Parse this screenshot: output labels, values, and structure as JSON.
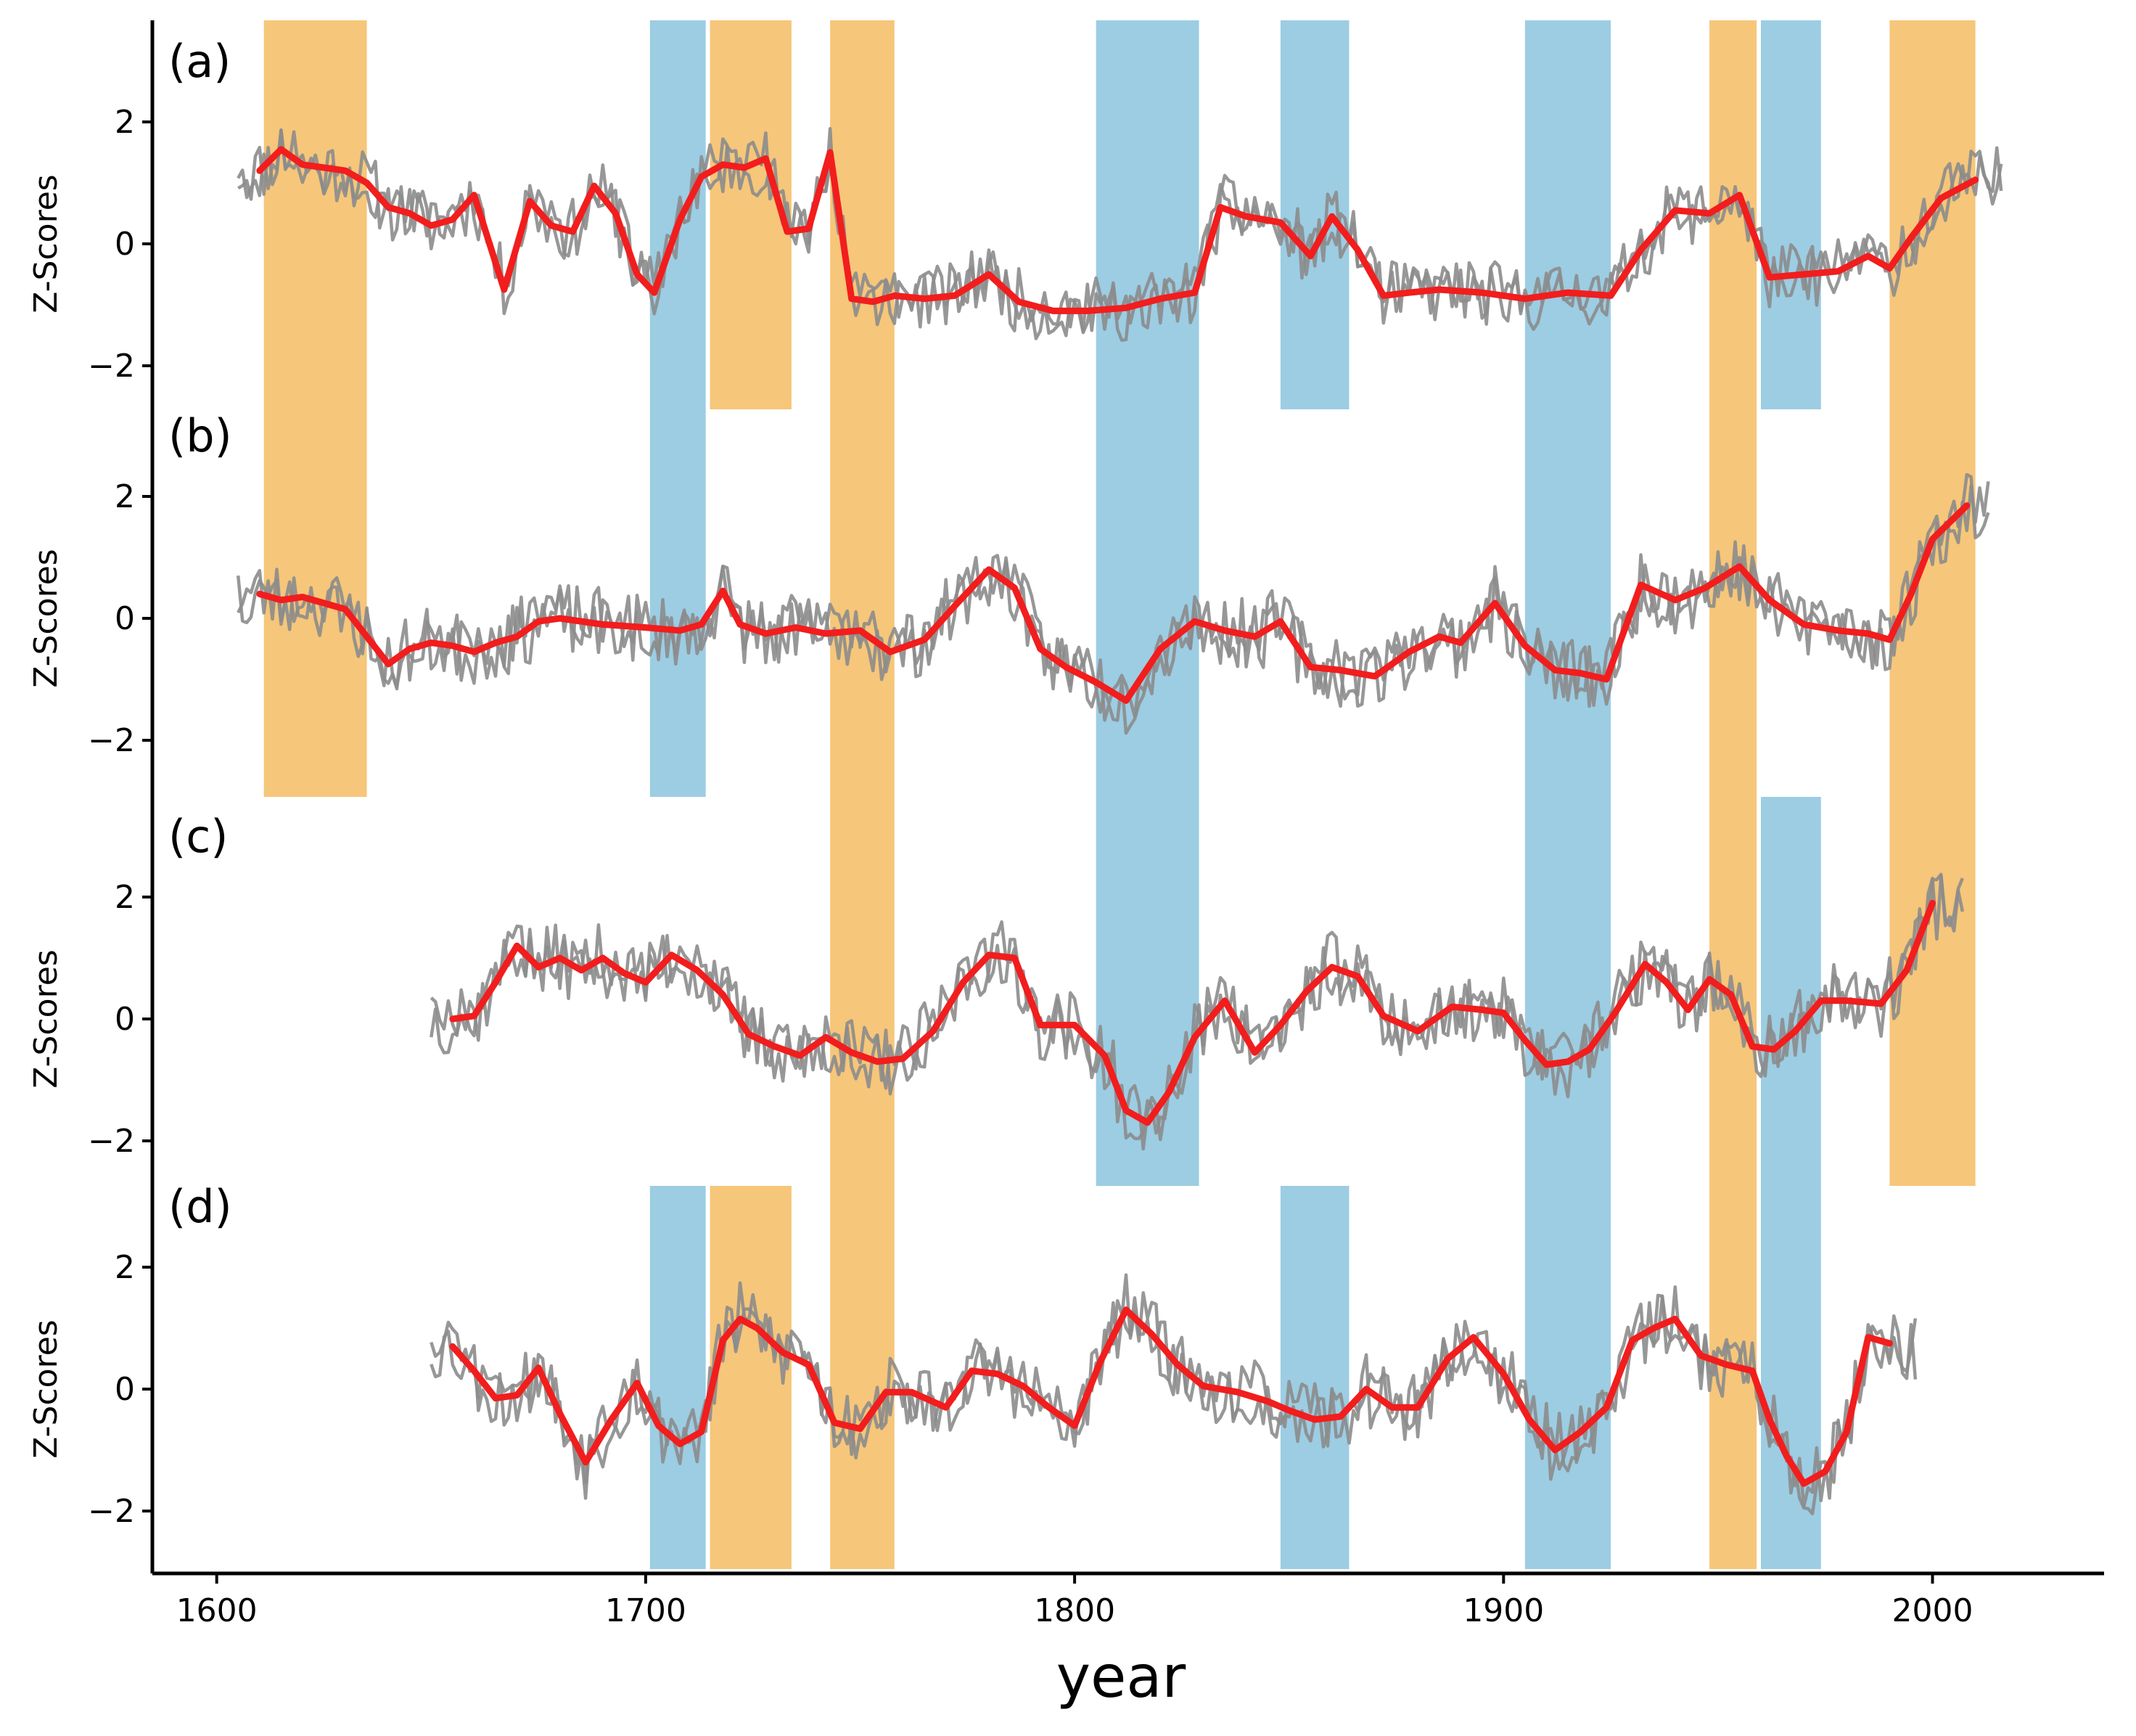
{
  "chart_data": {
    "type": "line",
    "title": "",
    "xlabel": "year",
    "ylabel": "Z-Scores",
    "xlim": [
      1585,
      2040
    ],
    "x_ticks": [
      1600,
      1700,
      1800,
      1900,
      2000
    ],
    "x_tick_labels": [
      "1600",
      "1700",
      "1800",
      "1900",
      "2000"
    ],
    "y_ticks": [
      2,
      0,
      -2
    ],
    "y_tick_labels": [
      "2",
      "0",
      "−2"
    ],
    "ylim_per_panel": [
      -2.6,
      3.4
    ],
    "colors": {
      "warm": "#f6c67a",
      "cool": "#9ccde3",
      "raw_series": "#8c8c8c",
      "smoothed_series": "#f21d1d",
      "axis": "#000000"
    },
    "highlight_bands": [
      {
        "type": "warm",
        "start": 1611,
        "end": 1635,
        "panels": [
          "a",
          "b"
        ]
      },
      {
        "type": "cool",
        "start": 1701,
        "end": 1714,
        "panels": [
          "a",
          "b"
        ]
      },
      {
        "type": "warm",
        "start": 1715,
        "end": 1734,
        "panels": [
          "a"
        ]
      },
      {
        "type": "warm",
        "start": 1743,
        "end": 1758,
        "panels": [
          "a",
          "b",
          "c"
        ]
      },
      {
        "type": "cool",
        "start": 1805,
        "end": 1829,
        "panels": [
          "a",
          "b",
          "c"
        ]
      },
      {
        "type": "cool",
        "start": 1848,
        "end": 1864,
        "panels": [
          "a"
        ]
      },
      {
        "type": "cool",
        "start": 1905,
        "end": 1925,
        "panels": [
          "a",
          "b",
          "c"
        ]
      },
      {
        "type": "warm",
        "start": 1948,
        "end": 1959,
        "panels": [
          "a",
          "b",
          "c"
        ]
      },
      {
        "type": "cool",
        "start": 1960,
        "end": 1974,
        "panels": [
          "a"
        ]
      },
      {
        "type": "warm",
        "start": 1990,
        "end": 2010,
        "panels": [
          "a",
          "b",
          "c"
        ]
      },
      {
        "type": "cool",
        "start": 1701,
        "end": 1714,
        "panels": [
          "d"
        ]
      },
      {
        "type": "warm",
        "start": 1715,
        "end": 1734,
        "panels": [
          "d"
        ]
      },
      {
        "type": "warm",
        "start": 1743,
        "end": 1758,
        "panels": [
          "d"
        ]
      },
      {
        "type": "cool",
        "start": 1848,
        "end": 1864,
        "panels": [
          "d"
        ]
      },
      {
        "type": "cool",
        "start": 1905,
        "end": 1925,
        "panels": [
          "d"
        ]
      },
      {
        "type": "warm",
        "start": 1948,
        "end": 1959,
        "panels": [
          "d"
        ]
      },
      {
        "type": "cool",
        "start": 1960,
        "end": 1974,
        "panels": [
          "c",
          "d"
        ]
      }
    ],
    "panels": [
      {
        "label": "(a)",
        "raw_range": [
          1605,
          2016
        ],
        "smoothed_range": [
          1610,
          2010
        ],
        "raw_noise": 0.55,
        "seed": 11,
        "smoothed": {
          "x": [
            1610,
            1615,
            1620,
            1625,
            1630,
            1635,
            1640,
            1645,
            1650,
            1655,
            1660,
            1667,
            1673,
            1678,
            1683,
            1688,
            1693,
            1698,
            1702,
            1708,
            1713,
            1718,
            1723,
            1728,
            1733,
            1738,
            1743,
            1748,
            1753,
            1758,
            1765,
            1772,
            1780,
            1787,
            1795,
            1803,
            1812,
            1820,
            1828,
            1834,
            1840,
            1848,
            1855,
            1860,
            1866,
            1872,
            1878,
            1885,
            1895,
            1905,
            1915,
            1925,
            1932,
            1940,
            1948,
            1955,
            1962,
            1970,
            1978,
            1985,
            1990,
            1995,
            2002,
            2010
          ],
          "y": [
            1.2,
            1.55,
            1.3,
            1.25,
            1.2,
            1.0,
            0.6,
            0.5,
            0.3,
            0.4,
            0.8,
            -0.75,
            0.7,
            0.3,
            0.2,
            0.95,
            0.5,
            -0.5,
            -0.8,
            0.4,
            1.1,
            1.3,
            1.25,
            1.4,
            0.2,
            0.25,
            1.5,
            -0.9,
            -0.95,
            -0.85,
            -0.9,
            -0.85,
            -0.5,
            -0.95,
            -1.1,
            -1.1,
            -1.05,
            -0.9,
            -0.8,
            0.6,
            0.45,
            0.35,
            -0.2,
            0.45,
            -0.1,
            -0.85,
            -0.8,
            -0.75,
            -0.8,
            -0.9,
            -0.8,
            -0.85,
            -0.1,
            0.55,
            0.5,
            0.8,
            -0.55,
            -0.5,
            -0.45,
            -0.2,
            -0.4,
            0.1,
            0.75,
            1.05
          ]
        }
      },
      {
        "label": "(b)",
        "raw_range": [
          1605,
          2013
        ],
        "smoothed_range": [
          1610,
          2008
        ],
        "raw_noise": 0.6,
        "seed": 23,
        "smoothed": {
          "x": [
            1610,
            1615,
            1620,
            1625,
            1630,
            1635,
            1640,
            1645,
            1650,
            1655,
            1660,
            1665,
            1670,
            1675,
            1680,
            1690,
            1700,
            1708,
            1713,
            1718,
            1722,
            1728,
            1735,
            1742,
            1750,
            1757,
            1765,
            1772,
            1780,
            1786,
            1792,
            1798,
            1805,
            1812,
            1820,
            1828,
            1835,
            1842,
            1848,
            1855,
            1862,
            1870,
            1878,
            1885,
            1890,
            1898,
            1905,
            1912,
            1918,
            1924,
            1932,
            1940,
            1947,
            1955,
            1962,
            1970,
            1978,
            1985,
            1990,
            1995,
            2000,
            2008
          ],
          "y": [
            0.4,
            0.3,
            0.35,
            0.25,
            0.15,
            -0.3,
            -0.75,
            -0.5,
            -0.4,
            -0.45,
            -0.55,
            -0.4,
            -0.3,
            -0.05,
            0.0,
            -0.1,
            -0.15,
            -0.2,
            -0.1,
            0.45,
            -0.1,
            -0.25,
            -0.15,
            -0.25,
            -0.2,
            -0.55,
            -0.35,
            0.2,
            0.8,
            0.5,
            -0.5,
            -0.8,
            -1.05,
            -1.35,
            -0.5,
            -0.05,
            -0.2,
            -0.3,
            -0.05,
            -0.8,
            -0.85,
            -0.95,
            -0.55,
            -0.3,
            -0.4,
            0.25,
            -0.45,
            -0.85,
            -0.9,
            -1.0,
            0.55,
            0.3,
            0.5,
            0.85,
            0.3,
            -0.1,
            -0.2,
            -0.25,
            -0.35,
            0.4,
            1.3,
            1.85
          ]
        }
      },
      {
        "label": "(c)",
        "raw_range": [
          1650,
          2007
        ],
        "smoothed_range": [
          1655,
          2000
        ],
        "raw_noise": 0.6,
        "seed": 37,
        "smoothed": {
          "x": [
            1655,
            1660,
            1665,
            1670,
            1675,
            1680,
            1685,
            1690,
            1695,
            1700,
            1706,
            1712,
            1718,
            1724,
            1730,
            1736,
            1742,
            1748,
            1754,
            1760,
            1767,
            1774,
            1780,
            1786,
            1792,
            1800,
            1807,
            1812,
            1817,
            1822,
            1828,
            1835,
            1842,
            1848,
            1854,
            1860,
            1866,
            1872,
            1880,
            1888,
            1895,
            1900,
            1905,
            1910,
            1915,
            1920,
            1926,
            1933,
            1938,
            1943,
            1948,
            1953,
            1958,
            1963,
            1968,
            1974,
            1980,
            1988,
            1994,
            2000
          ],
          "y": [
            0.0,
            0.05,
            0.6,
            1.2,
            0.85,
            1.0,
            0.8,
            1.0,
            0.75,
            0.6,
            1.05,
            0.8,
            0.4,
            -0.25,
            -0.45,
            -0.6,
            -0.3,
            -0.55,
            -0.7,
            -0.65,
            -0.2,
            0.6,
            1.05,
            1.0,
            -0.1,
            -0.1,
            -0.6,
            -1.5,
            -1.7,
            -1.2,
            -0.3,
            0.3,
            -0.55,
            -0.1,
            0.45,
            0.85,
            0.7,
            0.05,
            -0.2,
            0.2,
            0.15,
            0.1,
            -0.35,
            -0.75,
            -0.7,
            -0.5,
            0.1,
            0.9,
            0.6,
            0.15,
            0.65,
            0.4,
            -0.45,
            -0.5,
            -0.2,
            0.3,
            0.3,
            0.25,
            0.8,
            1.9
          ]
        }
      },
      {
        "label": "(d)",
        "raw_range": [
          1650,
          1996
        ],
        "smoothed_range": [
          1655,
          1990
        ],
        "raw_noise": 0.6,
        "seed": 53,
        "smoothed": {
          "x": [
            1655,
            1660,
            1665,
            1670,
            1675,
            1680,
            1686,
            1692,
            1698,
            1703,
            1708,
            1713,
            1718,
            1722,
            1726,
            1732,
            1738,
            1744,
            1750,
            1756,
            1762,
            1770,
            1776,
            1782,
            1788,
            1794,
            1800,
            1806,
            1812,
            1818,
            1824,
            1830,
            1838,
            1845,
            1850,
            1856,
            1862,
            1868,
            1874,
            1880,
            1887,
            1893,
            1900,
            1906,
            1912,
            1918,
            1924,
            1930,
            1935,
            1940,
            1946,
            1952,
            1958,
            1962,
            1966,
            1970,
            1975,
            1980,
            1985,
            1990
          ],
          "y": [
            0.7,
            0.3,
            -0.15,
            -0.1,
            0.35,
            -0.4,
            -1.2,
            -0.5,
            0.1,
            -0.6,
            -0.9,
            -0.7,
            0.8,
            1.15,
            1.0,
            0.6,
            0.4,
            -0.55,
            -0.65,
            -0.05,
            -0.05,
            -0.3,
            0.3,
            0.25,
            0.05,
            -0.3,
            -0.6,
            0.45,
            1.3,
            0.9,
            0.4,
            0.05,
            -0.05,
            -0.2,
            -0.35,
            -0.5,
            -0.45,
            0.0,
            -0.3,
            -0.3,
            0.5,
            0.85,
            0.25,
            -0.5,
            -1.0,
            -0.7,
            -0.3,
            0.8,
            1.0,
            1.15,
            0.55,
            0.4,
            0.3,
            -0.5,
            -1.1,
            -1.55,
            -1.35,
            -0.7,
            0.85,
            0.75
          ]
        }
      }
    ]
  }
}
